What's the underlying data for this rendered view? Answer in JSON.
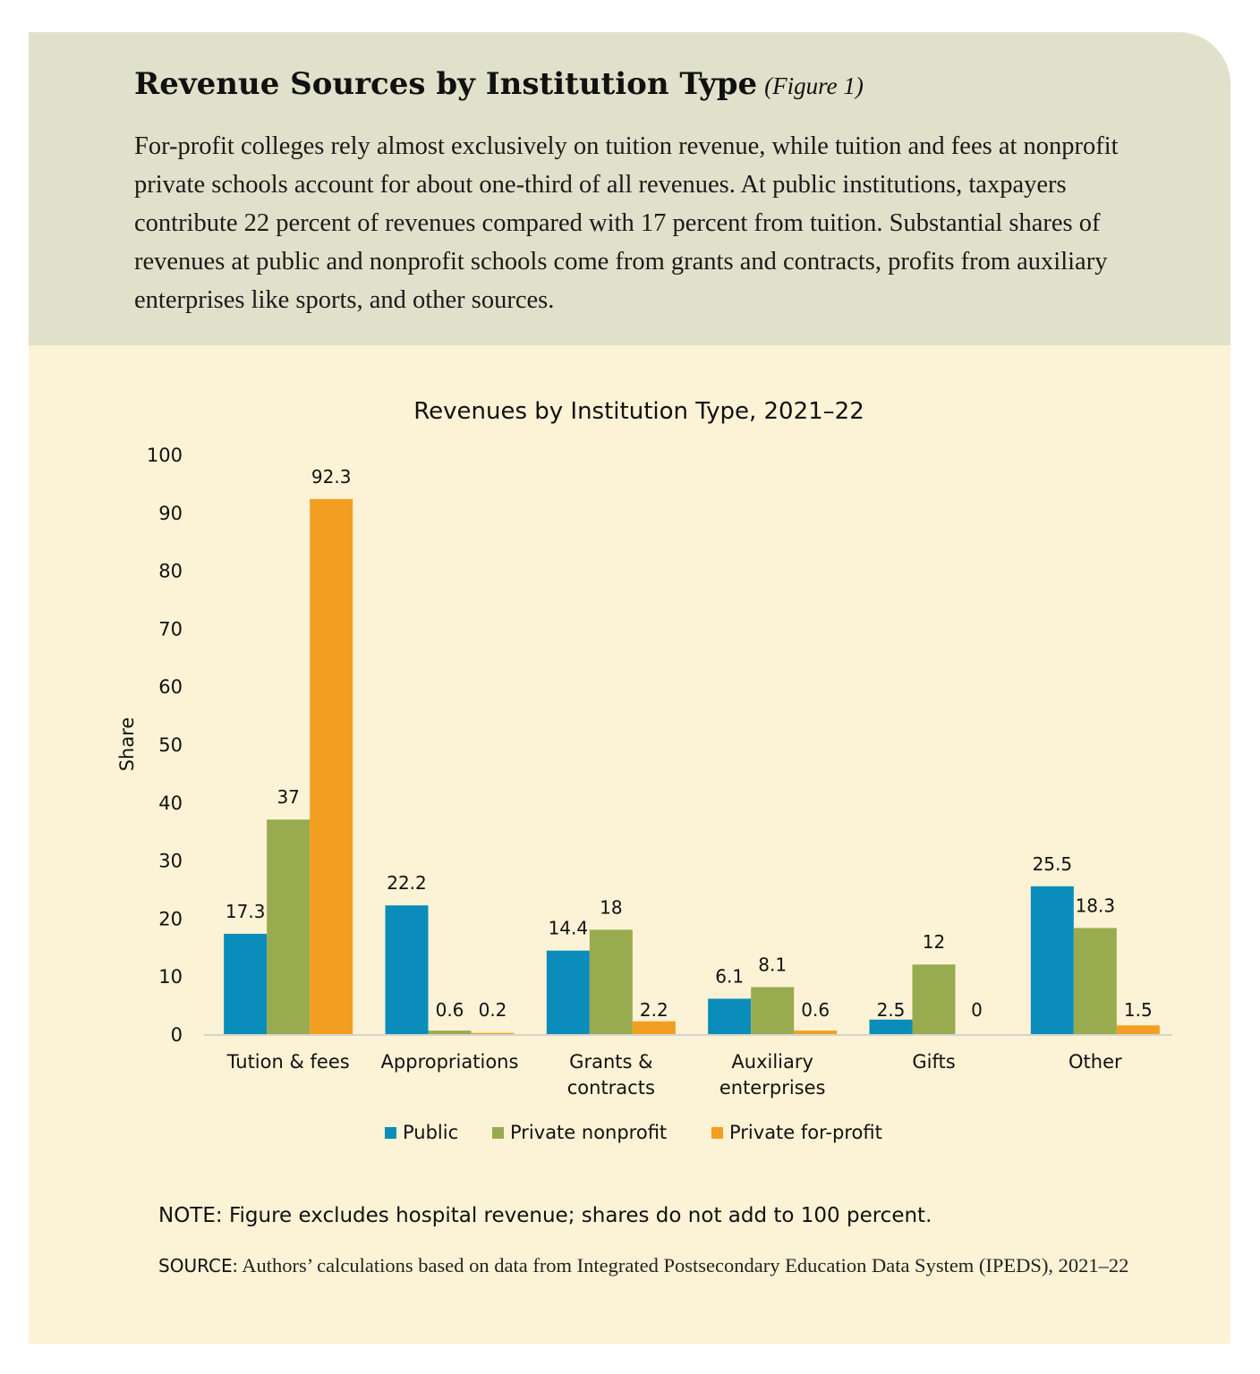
{
  "header": {
    "title": "Revenue Sources by Institution Type",
    "figure_ref": "(Figure 1)",
    "description": "For-profit colleges rely almost exclusively on tuition revenue, while tuition and fees at nonprofit private schools account for about one-third of all revenues. At public institutions, taxpayers contribute 22 percent of revenues compared with 17 percent from tuition. Substantial shares of revenues at public and nonprofit schools come from grants and contracts, profits from auxiliary enterprises like sports, and other sources."
  },
  "chart_data": {
    "type": "bar",
    "title": "Revenues by Institution Type, 2021–22",
    "xlabel": "",
    "ylabel": "Share",
    "ylim": [
      0,
      100
    ],
    "yticks": [
      0,
      10,
      20,
      30,
      40,
      50,
      60,
      70,
      80,
      90,
      100
    ],
    "categories": [
      [
        "Tution & fees"
      ],
      [
        "Appropriations"
      ],
      [
        "Grants &",
        "contracts"
      ],
      [
        "Auxiliary",
        "enterprises"
      ],
      [
        "Gifts"
      ],
      [
        "Other"
      ]
    ],
    "series": [
      {
        "name": "Public",
        "color": "#0a8dba",
        "values": [
          17.3,
          22.2,
          14.4,
          6.1,
          2.5,
          25.5
        ],
        "labels": [
          "17.3",
          "22.2",
          "14.4",
          "6.1",
          "2.5",
          "25.5"
        ]
      },
      {
        "name": "Private nonprofit",
        "color": "#98ab4e",
        "values": [
          37,
          0.6,
          18,
          8.1,
          12,
          18.3
        ],
        "labels": [
          "37",
          "0.6",
          "18",
          "8.1",
          "12",
          "18.3"
        ]
      },
      {
        "name": "Private for-profit",
        "color": "#f29f21",
        "values": [
          92.3,
          0.2,
          2.2,
          0.6,
          0,
          1.5
        ],
        "labels": [
          "92.3",
          "0.2",
          "2.2",
          "0.6",
          "0",
          "1.5"
        ]
      }
    ],
    "legend_position": "bottom",
    "grid": false
  },
  "note": "NOTE: Figure excludes hospital revenue; shares do not add to 100 percent.",
  "source": {
    "label": "SOURCE",
    "text": ": Authors’ calculations based on data from Integrated Postsecondary Education Data System (IPEDS), 2021–22"
  }
}
